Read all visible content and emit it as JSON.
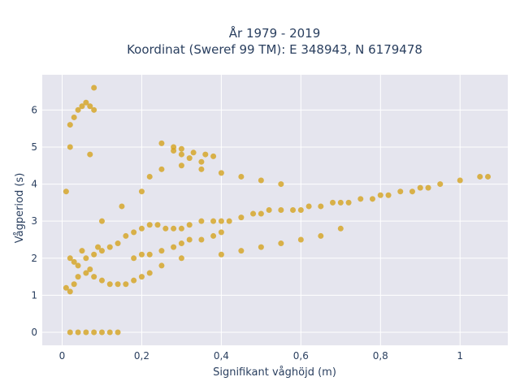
{
  "chart_data": {
    "type": "scatter",
    "title_lines": [
      "År 1979 - 2019",
      "Koordinat (Sweref 99 TM): E 348943, N 6179478"
    ],
    "xlabel": "Signifikant våghöjd (m)",
    "ylabel": "Vågperiod (s)",
    "xlim": [
      -0.05,
      1.12
    ],
    "ylim": [
      -0.35,
      6.95
    ],
    "xticks": [
      0,
      0.2,
      0.4,
      0.6,
      0.8,
      1
    ],
    "xtick_labels": [
      "0",
      "0,2",
      "0,4",
      "0,6",
      "0,8",
      "1"
    ],
    "yticks": [
      0,
      1,
      2,
      3,
      4,
      5,
      6
    ],
    "ytick_labels": [
      "0",
      "1",
      "2",
      "3",
      "4",
      "5",
      "6"
    ],
    "grid": true,
    "marker_color": "#D4A21E",
    "plot_background": "#E5E5EE",
    "series": [
      {
        "name": "",
        "x": [
          0.02,
          0.03,
          0.04,
          0.05,
          0.06,
          0.07,
          0.08,
          0.09,
          0.1,
          0.12,
          0.14,
          0.16,
          0.18,
          0.2,
          0.22,
          0.24,
          0.26,
          0.28,
          0.3,
          0.32,
          0.35,
          0.38,
          0.4,
          0.42,
          0.45,
          0.48,
          0.5,
          0.52,
          0.55,
          0.58,
          0.6,
          0.62,
          0.65,
          0.68,
          0.7,
          0.72,
          0.75,
          0.78,
          0.8,
          0.82,
          0.85,
          0.88,
          0.9,
          0.92,
          0.95,
          1.0,
          1.05,
          1.07,
          0.02,
          0.03,
          0.04,
          0.05,
          0.06,
          0.07,
          0.08,
          0.02,
          0.04,
          0.06,
          0.08,
          0.1,
          0.12,
          0.14,
          0.01,
          0.02,
          0.03,
          0.04,
          0.06,
          0.08,
          0.1,
          0.12,
          0.14,
          0.16,
          0.18,
          0.2,
          0.22,
          0.25,
          0.1,
          0.15,
          0.2,
          0.22,
          0.25,
          0.3,
          0.35,
          0.4,
          0.45,
          0.5,
          0.55,
          0.18,
          0.2,
          0.22,
          0.25,
          0.28,
          0.3,
          0.32,
          0.35,
          0.38,
          0.4,
          0.3,
          0.4,
          0.45,
          0.5,
          0.55,
          0.6,
          0.65,
          0.7,
          0.08,
          0.02,
          0.07,
          0.01,
          0.25,
          0.28,
          0.3,
          0.32,
          0.35,
          0.28,
          0.3,
          0.33,
          0.36,
          0.38
        ],
        "y": [
          2.0,
          1.9,
          1.8,
          2.2,
          2.0,
          1.7,
          2.1,
          2.3,
          2.2,
          2.3,
          2.4,
          2.6,
          2.7,
          2.8,
          2.9,
          2.9,
          2.8,
          2.8,
          2.8,
          2.9,
          3.0,
          3.0,
          3.0,
          3.0,
          3.1,
          3.2,
          3.2,
          3.3,
          3.3,
          3.3,
          3.3,
          3.4,
          3.4,
          3.5,
          3.5,
          3.5,
          3.6,
          3.6,
          3.7,
          3.7,
          3.8,
          3.8,
          3.9,
          3.9,
          4.0,
          4.1,
          4.2,
          4.2,
          5.6,
          5.8,
          6.0,
          6.1,
          6.2,
          6.1,
          6.0,
          0.0,
          0.0,
          0.0,
          0.0,
          0.0,
          0.0,
          0.0,
          1.2,
          1.1,
          1.3,
          1.5,
          1.6,
          1.5,
          1.4,
          1.3,
          1.3,
          1.3,
          1.4,
          1.5,
          1.6,
          1.8,
          3.0,
          3.4,
          3.8,
          4.2,
          4.4,
          4.5,
          4.4,
          4.3,
          4.2,
          4.1,
          4.0,
          2.0,
          2.1,
          2.1,
          2.2,
          2.3,
          2.4,
          2.5,
          2.5,
          2.6,
          2.7,
          2.0,
          2.1,
          2.2,
          2.3,
          2.4,
          2.5,
          2.6,
          2.8,
          6.6,
          5.0,
          4.8,
          3.8,
          5.1,
          4.9,
          4.8,
          4.7,
          4.6,
          5.0,
          4.95,
          4.85,
          4.8,
          4.75
        ]
      }
    ]
  }
}
